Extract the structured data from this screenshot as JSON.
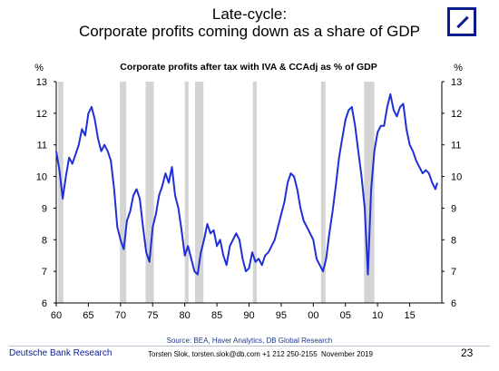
{
  "header": {
    "title_line1": "Late-cycle:",
    "title_line2": "Corporate profits coming down as a share of GDP"
  },
  "chart_data": {
    "type": "line",
    "title": "Corporate profits after tax with IVA & CCAdj as  % of GDP",
    "ylabel_left": "%",
    "ylabel_right": "%",
    "ylim": [
      6,
      13
    ],
    "yticks": [
      6,
      7,
      8,
      9,
      10,
      11,
      12,
      13
    ],
    "xlim": [
      1960,
      2020
    ],
    "xticks": [
      1960,
      1965,
      1970,
      1975,
      1980,
      1985,
      1990,
      1995,
      2000,
      2005,
      2010,
      2015
    ],
    "xtick_labels": [
      "60",
      "65",
      "70",
      "75",
      "80",
      "85",
      "90",
      "95",
      "00",
      "05",
      "10",
      "15"
    ],
    "line_color": "#1f2fd8",
    "recession_color": "#d4d4d4",
    "recessions": [
      [
        1960.3,
        1961.1
      ],
      [
        1969.9,
        1970.9
      ],
      [
        1973.9,
        1975.2
      ],
      [
        1980.0,
        1980.6
      ],
      [
        1981.6,
        1982.9
      ],
      [
        1990.6,
        1991.2
      ],
      [
        2001.2,
        2001.9
      ],
      [
        2007.9,
        2009.5
      ]
    ],
    "series": [
      {
        "x": [
          1960.0,
          1960.5,
          1961.0,
          1961.5,
          1962.0,
          1962.5,
          1963.0,
          1963.5,
          1964.0,
          1964.5,
          1965.0,
          1965.5,
          1966.0,
          1966.5,
          1967.0,
          1967.5,
          1968.0,
          1968.5,
          1969.0,
          1969.5,
          1970.0,
          1970.5,
          1971.0,
          1971.5,
          1972.0,
          1972.5,
          1973.0,
          1973.5,
          1974.0,
          1974.5,
          1975.0,
          1975.5,
          1976.0,
          1976.5,
          1977.0,
          1977.5,
          1978.0,
          1978.5,
          1979.0,
          1979.5,
          1980.0,
          1980.5,
          1981.0,
          1981.5,
          1982.0,
          1982.5,
          1983.0,
          1983.5,
          1984.0,
          1984.5,
          1985.0,
          1985.5,
          1986.0,
          1986.5,
          1987.0,
          1987.5,
          1988.0,
          1988.5,
          1989.0,
          1989.5,
          1990.0,
          1990.5,
          1991.0,
          1991.5,
          1992.0,
          1992.5,
          1993.0,
          1993.5,
          1994.0,
          1994.5,
          1995.0,
          1995.5,
          1996.0,
          1996.5,
          1997.0,
          1997.5,
          1998.0,
          1998.5,
          1999.0,
          1999.5,
          2000.0,
          2000.5,
          2001.0,
          2001.5,
          2002.0,
          2002.5,
          2003.0,
          2003.5,
          2004.0,
          2004.5,
          2005.0,
          2005.5,
          2006.0,
          2006.5,
          2007.0,
          2007.5,
          2008.0,
          2008.5,
          2009.0,
          2009.5,
          2010.0,
          2010.5,
          2011.0,
          2011.5,
          2012.0,
          2012.5,
          2013.0,
          2013.5,
          2014.0,
          2014.5,
          2015.0,
          2015.5,
          2016.0,
          2016.5,
          2017.0,
          2017.5,
          2018.0,
          2018.5,
          2019.0,
          2019.3
        ],
        "values": [
          10.8,
          10.2,
          9.3,
          10.0,
          10.6,
          10.4,
          10.7,
          11.0,
          11.5,
          11.3,
          12.0,
          12.2,
          11.8,
          11.2,
          10.8,
          11.0,
          10.8,
          10.5,
          9.6,
          8.4,
          8.0,
          7.7,
          8.6,
          8.9,
          9.4,
          9.6,
          9.3,
          8.4,
          7.6,
          7.3,
          8.4,
          8.8,
          9.4,
          9.7,
          10.1,
          9.8,
          10.3,
          9.4,
          9.0,
          8.3,
          7.5,
          7.8,
          7.4,
          7.0,
          6.9,
          7.6,
          8.0,
          8.5,
          8.2,
          8.3,
          7.8,
          8.0,
          7.5,
          7.2,
          7.8,
          8.0,
          8.2,
          8.0,
          7.4,
          7.0,
          7.1,
          7.6,
          7.3,
          7.4,
          7.2,
          7.5,
          7.6,
          7.8,
          8.0,
          8.4,
          8.8,
          9.2,
          9.8,
          10.1,
          10.0,
          9.6,
          9.0,
          8.6,
          8.4,
          8.2,
          8.0,
          7.4,
          7.2,
          7.0,
          7.4,
          8.2,
          8.9,
          9.7,
          10.6,
          11.2,
          11.8,
          12.1,
          12.2,
          11.6,
          10.8,
          10.0,
          9.0,
          6.9,
          9.6,
          10.8,
          11.4,
          11.6,
          11.6,
          12.2,
          12.6,
          12.1,
          11.9,
          12.2,
          12.3,
          11.5,
          11.0,
          10.8,
          10.5,
          10.3,
          10.1,
          10.2,
          10.1,
          9.8,
          9.6,
          9.8
        ]
      }
    ]
  },
  "source_text": "Source:  BEA, Haver Analytics, DB Global  Research",
  "footer": {
    "org": "Deutsche Bank Research",
    "contact": "Torsten Slok, torsten.slok@db.com  +1 212 250-2155",
    "date": "November 2019",
    "page": "23"
  }
}
